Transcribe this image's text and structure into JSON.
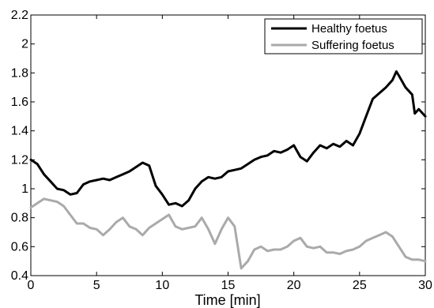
{
  "chart_data": {
    "type": "line",
    "title": "",
    "xlabel": "Time [min]",
    "ylabel": "",
    "xlim": [
      0,
      30
    ],
    "ylim": [
      0.4,
      2.2
    ],
    "xticks": [
      0,
      5,
      10,
      15,
      20,
      25,
      30
    ],
    "xtick_labels": [
      "0",
      "5",
      "10",
      "15",
      "20",
      "25",
      "30"
    ],
    "yticks": [
      0.4,
      0.6,
      0.8,
      1.0,
      1.2,
      1.4,
      1.6,
      1.8,
      2.0,
      2.2
    ],
    "ytick_labels": [
      "0.4",
      "0.6",
      "0.8",
      "1",
      "1.2",
      "1.4",
      "1.6",
      "1.8",
      "2",
      "2.2"
    ],
    "grid": false,
    "legend_position": "top-right",
    "series": [
      {
        "name": "Healthy foetus",
        "color": "#000000",
        "x": [
          0,
          0.5,
          1,
          1.5,
          2,
          2.5,
          3,
          3.5,
          4,
          4.5,
          5,
          5.5,
          6,
          6.5,
          7,
          7.5,
          8,
          8.5,
          9,
          9.5,
          10,
          10.5,
          11,
          11.5,
          12,
          12.5,
          13,
          13.5,
          14,
          14.5,
          15,
          15.5,
          16,
          16.5,
          17,
          17.5,
          18,
          18.5,
          19,
          19.5,
          20,
          20.5,
          21,
          21.5,
          22,
          22.5,
          23,
          23.5,
          24,
          24.5,
          25,
          25.5,
          26,
          26.5,
          27,
          27.5,
          27.8,
          28,
          28.5,
          29,
          29.2,
          29.5,
          30
        ],
        "values": [
          1.2,
          1.17,
          1.1,
          1.05,
          1.0,
          0.99,
          0.96,
          0.97,
          1.03,
          1.05,
          1.06,
          1.07,
          1.06,
          1.08,
          1.1,
          1.12,
          1.15,
          1.18,
          1.16,
          1.02,
          0.96,
          0.89,
          0.9,
          0.88,
          0.92,
          1.0,
          1.05,
          1.08,
          1.07,
          1.08,
          1.12,
          1.13,
          1.14,
          1.17,
          1.2,
          1.22,
          1.23,
          1.26,
          1.25,
          1.27,
          1.3,
          1.22,
          1.19,
          1.25,
          1.3,
          1.28,
          1.31,
          1.29,
          1.33,
          1.3,
          1.38,
          1.5,
          1.62,
          1.66,
          1.7,
          1.75,
          1.81,
          1.78,
          1.7,
          1.65,
          1.52,
          1.55,
          1.5
        ]
      },
      {
        "name": "Suffering foetus",
        "color": "#aaaaaa",
        "x": [
          0,
          0.5,
          1,
          1.5,
          2,
          2.5,
          3,
          3.5,
          4,
          4.5,
          5,
          5.5,
          6,
          6.5,
          7,
          7.5,
          8,
          8.5,
          9,
          9.5,
          10,
          10.5,
          11,
          11.5,
          12,
          12.5,
          13,
          13.5,
          14,
          14.5,
          15,
          15.5,
          16,
          16.5,
          17,
          17.5,
          18,
          18.5,
          19,
          19.5,
          20,
          20.5,
          21,
          21.5,
          22,
          22.5,
          23,
          23.5,
          24,
          24.5,
          25,
          25.5,
          26,
          26.5,
          27,
          27.5,
          28,
          28.5,
          29,
          29.5,
          30
        ],
        "values": [
          0.87,
          0.9,
          0.93,
          0.92,
          0.91,
          0.88,
          0.82,
          0.76,
          0.76,
          0.73,
          0.72,
          0.68,
          0.72,
          0.77,
          0.8,
          0.74,
          0.72,
          0.68,
          0.73,
          0.76,
          0.79,
          0.82,
          0.74,
          0.72,
          0.73,
          0.74,
          0.8,
          0.72,
          0.62,
          0.72,
          0.8,
          0.74,
          0.45,
          0.5,
          0.58,
          0.6,
          0.57,
          0.58,
          0.58,
          0.6,
          0.64,
          0.66,
          0.6,
          0.59,
          0.6,
          0.56,
          0.56,
          0.55,
          0.57,
          0.58,
          0.6,
          0.64,
          0.66,
          0.68,
          0.7,
          0.67,
          0.6,
          0.53,
          0.51,
          0.51,
          0.5
        ]
      }
    ]
  }
}
